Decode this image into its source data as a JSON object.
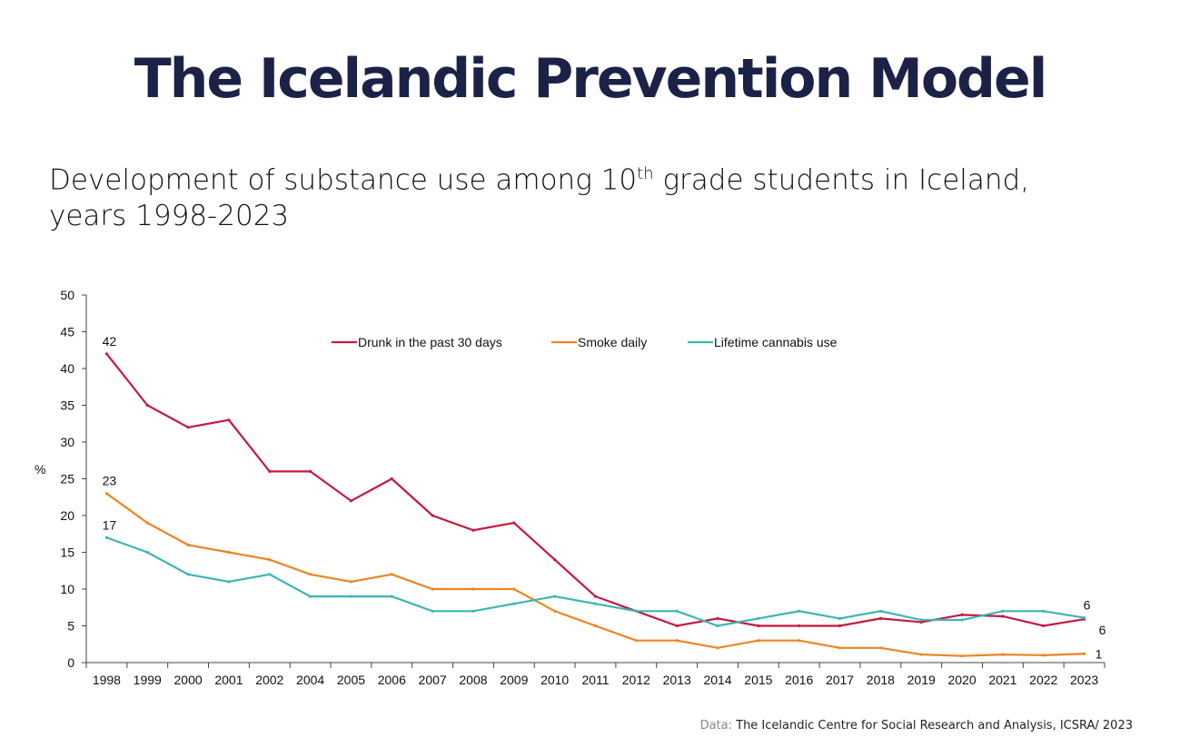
{
  "title": "The Icelandic Prevention Model",
  "subtitle": {
    "pre": "Development of substance use among 10",
    "sup": "th",
    "post": " grade students in Iceland,",
    "line2": "years 1998-2023"
  },
  "footer": {
    "label": "Data:",
    "text": "The Icelandic Centre for Social Research and Analysis, ICSRA/ 2023"
  },
  "chart_data": {
    "type": "line",
    "title": "",
    "xlabel": "",
    "ylabel": "%",
    "ylim": [
      0,
      50
    ],
    "yticks": [
      0,
      5,
      10,
      15,
      20,
      25,
      30,
      35,
      40,
      45,
      50
    ],
    "legend_position": "top",
    "categories": [
      "1998",
      "1999",
      "2000",
      "2001",
      "2002",
      "2004",
      "2005",
      "2006",
      "2007",
      "2008",
      "2009",
      "2010",
      "2011",
      "2012",
      "2013",
      "2014",
      "2015",
      "2016",
      "2017",
      "2018",
      "2019",
      "2020",
      "2021",
      "2022",
      "2023"
    ],
    "series": [
      {
        "name": "Drunk in the past 30 days",
        "color": "#c8183f",
        "values": [
          42,
          35,
          32,
          33,
          26,
          26,
          22,
          25,
          20,
          18,
          19,
          14,
          9,
          7,
          5,
          6,
          5,
          5,
          5,
          6,
          5.5,
          6.5,
          6.3,
          5,
          5.9
        ],
        "labels": {
          "start": "42",
          "end": "6"
        }
      },
      {
        "name": "Smoke daily",
        "color": "#ee8422",
        "values": [
          23,
          19,
          16,
          15,
          14,
          12,
          11,
          12,
          10,
          10,
          10,
          7,
          5,
          3,
          3,
          2,
          3,
          3,
          2,
          2,
          1.1,
          0.9,
          1.1,
          1,
          1.2
        ],
        "labels": {
          "start": "23",
          "end": "1"
        }
      },
      {
        "name": "Lifetime cannabis use",
        "color": "#3bb6b4",
        "values": [
          17,
          15,
          12,
          11,
          12,
          9,
          9,
          9,
          7,
          7,
          8,
          9,
          8,
          7,
          7,
          5,
          6,
          7,
          6,
          7,
          5.8,
          5.8,
          7,
          7,
          6.1
        ],
        "labels": {
          "start": "17",
          "end": "6"
        }
      }
    ]
  }
}
